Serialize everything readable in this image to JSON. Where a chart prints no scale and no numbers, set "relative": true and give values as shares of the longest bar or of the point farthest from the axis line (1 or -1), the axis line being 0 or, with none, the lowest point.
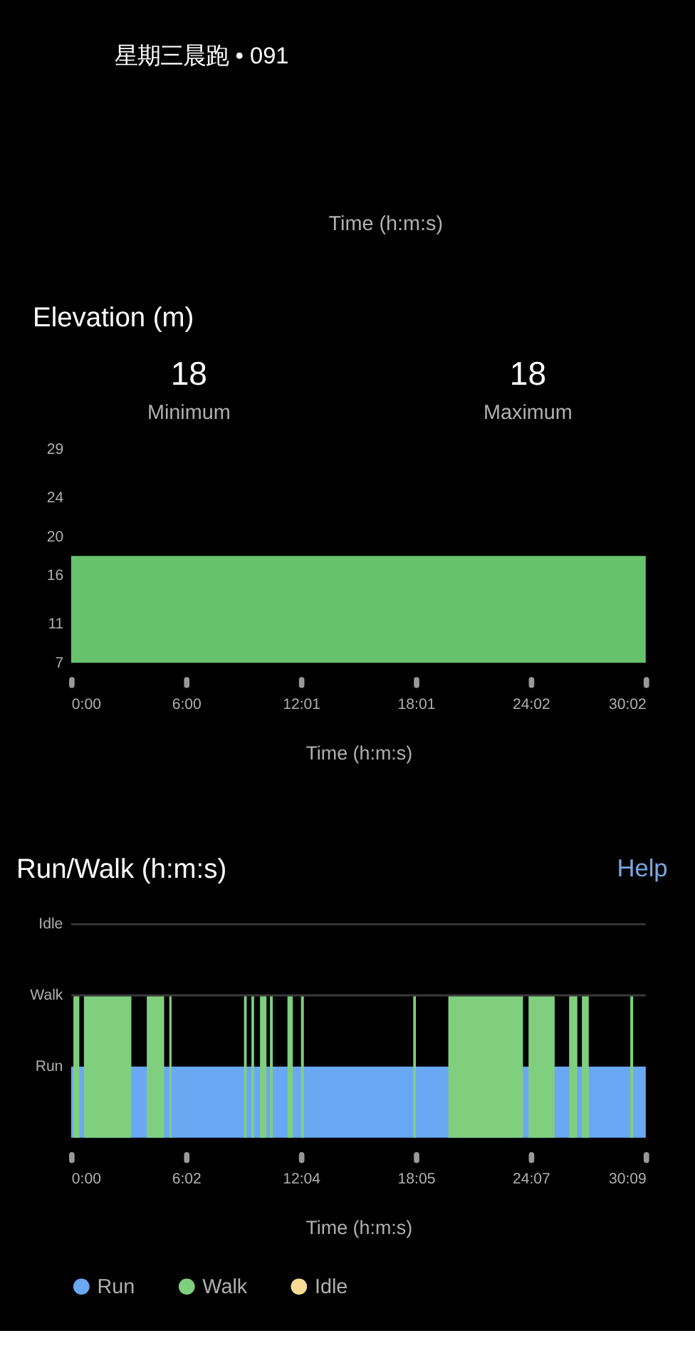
{
  "chart_data": [
    {
      "type": "other",
      "title": "星期三晨跑 • 091",
      "annotations": [
        "Time (h:m:s)"
      ]
    },
    {
      "type": "area",
      "title": "Elevation (m)",
      "xlabel": "Time (h:m:s)",
      "annotations": [
        "18",
        "Minimum",
        "18",
        "Maximum"
      ],
      "xlim": [
        0,
        30.033
      ],
      "xticks": [
        {
          "value": 0,
          "label": "0:00"
        },
        {
          "value": 6.007,
          "label": "6:00"
        },
        {
          "value": 12.013,
          "label": "12:01"
        },
        {
          "value": 18.02,
          "label": "18:01"
        },
        {
          "value": 24.027,
          "label": "24:02"
        },
        {
          "value": 30.033,
          "label": "30:02"
        }
      ],
      "ylim": [
        7,
        29
      ],
      "yticks": [
        7,
        11,
        16,
        20,
        24,
        29
      ],
      "series": [
        {
          "color": "#66c26c",
          "x": [
            0,
            30.033
          ],
          "values": [
            18,
            18
          ]
        }
      ]
    },
    {
      "type": "area",
      "title": "Run/Walk (h:m:s)",
      "xlabel": "Time (h:m:s)",
      "annotations": [
        "Help",
        "Run"
      ],
      "legend": "bottom",
      "relative": true,
      "xlim": [
        0,
        30.15
      ],
      "xticks": [
        {
          "value": 0,
          "label": "0:00"
        },
        {
          "value": 6.03,
          "label": "6:02"
        },
        {
          "value": 12.06,
          "label": "12:04"
        },
        {
          "value": 18.09,
          "label": "18:05"
        },
        {
          "value": 24.12,
          "label": "24:07"
        },
        {
          "value": 30.15,
          "label": "30:09"
        }
      ],
      "ref_lines": [
        {
          "axis": "y",
          "value": 1,
          "label": "Walk",
          "color": "#3a3a3a"
        },
        {
          "axis": "y",
          "value": 1.5,
          "label": "Idle",
          "color": "#3a3a3a"
        }
      ],
      "series": [
        {
          "name": "Run",
          "color": "#6aa8f4",
          "x": [
            0,
            30.15
          ],
          "values": [
            0.5,
            0.5
          ]
        },
        {
          "name": "Walk",
          "color": "#80cf7e",
          "x": [
            0,
            0.12,
            0.12,
            0.43,
            0.43,
            0.67,
            0.67,
            3.16,
            3.16,
            3.97,
            3.97,
            4.88,
            4.88,
            5.15,
            5.15,
            5.27,
            5.27,
            9.07,
            9.07,
            9.21,
            9.21,
            9.46,
            9.46,
            9.6,
            9.6,
            9.91,
            9.91,
            10.25,
            10.25,
            10.43,
            10.43,
            10.58,
            10.58,
            11.35,
            11.35,
            11.63,
            11.63,
            12.06,
            12.06,
            12.21,
            12.21,
            17.95,
            17.95,
            18.09,
            18.09,
            19.79,
            19.79,
            23.71,
            23.71,
            24.0,
            24.0,
            25.37,
            25.37,
            26.13,
            26.13,
            26.56,
            26.56,
            26.8,
            26.8,
            27.16,
            27.16,
            29.34,
            29.34,
            29.49,
            29.49,
            30.15
          ],
          "values": [
            0,
            0,
            1,
            1,
            0,
            0,
            1,
            1,
            0,
            0,
            1,
            1,
            0,
            0,
            1,
            1,
            0,
            0,
            1,
            1,
            0,
            0,
            1,
            1,
            0,
            0,
            1,
            1,
            0,
            0,
            1,
            1,
            0,
            0,
            1,
            1,
            0,
            0,
            1,
            1,
            0,
            0,
            1,
            1,
            0,
            0,
            1,
            1,
            0,
            0,
            1,
            1,
            0,
            0,
            1,
            1,
            0,
            0,
            1,
            1,
            0,
            0,
            1,
            1,
            0,
            0
          ]
        },
        {
          "name": "Idle",
          "color": "#f8dc94"
        }
      ]
    }
  ]
}
